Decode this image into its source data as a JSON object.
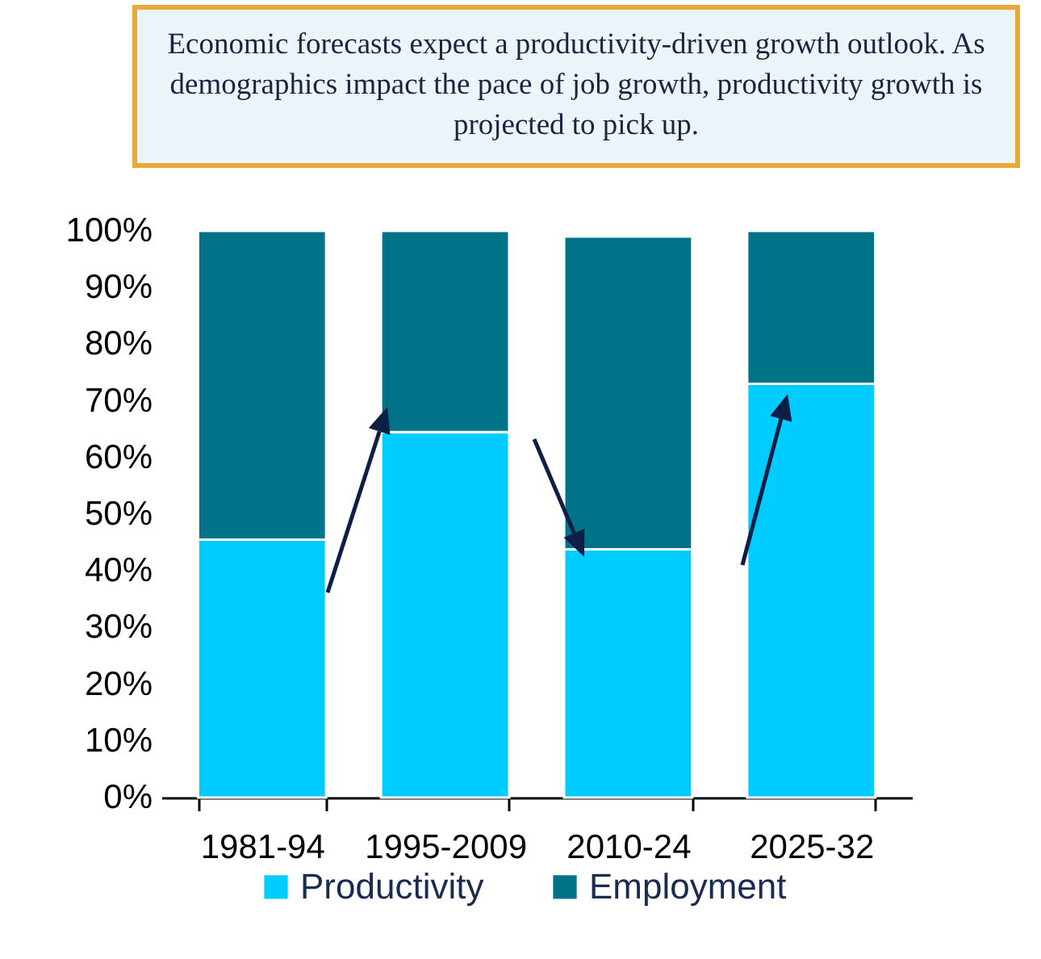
{
  "chart_data": {
    "type": "bar",
    "title": "Economic forecasts expect a productivity-driven growth outlook. As demographics impact the pace of job growth, productivity growth is projected to pick up.",
    "categories": [
      "1981-94",
      "1995-2009",
      "2010-24",
      "2025-32"
    ],
    "stacked": true,
    "series": [
      {
        "name": "Productivity",
        "color": "#00ccff",
        "values": [
          45.5,
          64.5,
          43.8,
          73
        ]
      },
      {
        "name": "Employment",
        "color": "#007388",
        "values": [
          54.5,
          35.5,
          55.2,
          27
        ]
      }
    ],
    "ylim": [
      0,
      100
    ],
    "yticks": [
      {
        "value": 0,
        "label": "0%"
      },
      {
        "value": 10,
        "label": "10%"
      },
      {
        "value": 20,
        "label": "20%"
      },
      {
        "value": 30,
        "label": "30%"
      },
      {
        "value": 40,
        "label": "40%"
      },
      {
        "value": 50,
        "label": "50%"
      },
      {
        "value": 60,
        "label": "60%"
      },
      {
        "value": 70,
        "label": "70%"
      },
      {
        "value": 80,
        "label": "80%"
      },
      {
        "value": 90,
        "label": "90%"
      },
      {
        "value": 100,
        "label": "100%"
      }
    ],
    "grid": false,
    "legend": "bottom"
  }
}
